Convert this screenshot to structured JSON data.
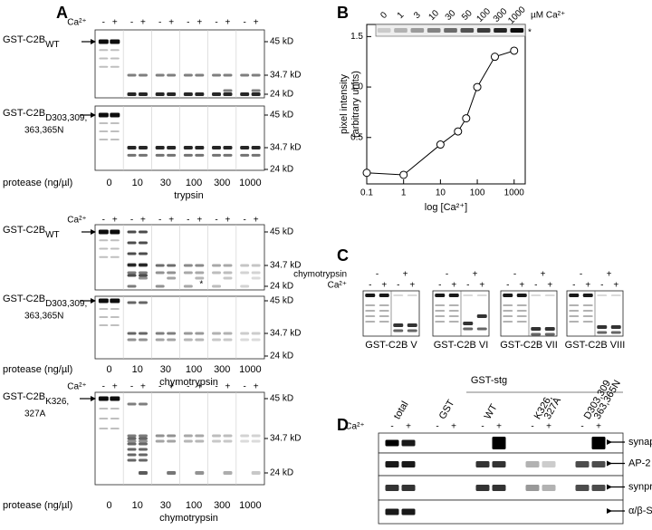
{
  "chart_data": {
    "type": "line",
    "panel": "B",
    "strip_labels": [
      0,
      1,
      3,
      10,
      30,
      50,
      100,
      300,
      1000
    ],
    "strip_unit": "µM Ca²⁺",
    "strip_mark": "*",
    "x": [
      0.1,
      1,
      10,
      30,
      50,
      100,
      300,
      1000
    ],
    "series": [
      {
        "color": "#000000",
        "values": [
          0.15,
          0.13,
          0.43,
          0.56,
          0.69,
          1.0,
          1.3,
          1.36
        ]
      }
    ],
    "xlim": [
      0.1,
      2000
    ],
    "xticks": [
      0.1,
      1,
      10,
      100,
      1000
    ],
    "xscale": "log",
    "ylim": [
      0.04,
      1.62
    ],
    "yticks": [
      0.5,
      {
        "value": 1,
        "label": "1.0"
      },
      1.5
    ],
    "xlabel": "log [Ca²⁺]",
    "ylabel": [
      "pixel intensity",
      "(arbitrary units)"
    ]
  },
  "panel_a": {
    "letter": "A",
    "ca": "Ca²⁺",
    "signs": [
      "-",
      "+"
    ],
    "protease_label": "protease (ng/µl)",
    "doses": [
      0,
      10,
      30,
      100,
      300,
      1000
    ],
    "markers": [
      "45 kD",
      "34.7 kD",
      "24 kD"
    ],
    "sections": [
      {
        "protease": "trypsin",
        "gels": [
          {
            "name": "GST-C2B",
            "sub": [
              "WT"
            ]
          },
          {
            "name": "GST-C2B",
            "sub": [
              "D303,309,",
              "363,365N"
            ]
          }
        ]
      },
      {
        "protease": "chymotrypsin",
        "star": "*",
        "gels": [
          {
            "name": "GST-C2B",
            "sub": [
              "WT"
            ]
          },
          {
            "name": "GST-C2B",
            "sub": [
              "D303,309,",
              "363,365N"
            ]
          }
        ]
      },
      {
        "protease": "chymotrypsin",
        "gels": [
          {
            "name": "GST-C2B",
            "sub": [
              "K326,",
              "327A"
            ]
          }
        ]
      }
    ]
  },
  "panel_c": {
    "letter": "C",
    "protease": "chymotrypsin",
    "ca": "Ca²⁺",
    "signs": [
      "-",
      "+"
    ],
    "gels": [
      "GST-C2B V",
      "GST-C2B VI",
      "GST-C2B VII",
      "GST-C2B VIII"
    ]
  },
  "panel_d": {
    "letter": "D",
    "group": "GST-stg",
    "columns": [
      [
        "total"
      ],
      [
        "GST"
      ],
      [
        "WT"
      ],
      [
        "K326,",
        "327A"
      ],
      [
        "D303,309",
        "363,365N"
      ]
    ],
    "ca": "Ca²⁺",
    "signs": [
      "-",
      "+"
    ],
    "rows": [
      "synaptotagmin",
      "AP-2",
      "synprint",
      "α/β-SNAP"
    ]
  }
}
